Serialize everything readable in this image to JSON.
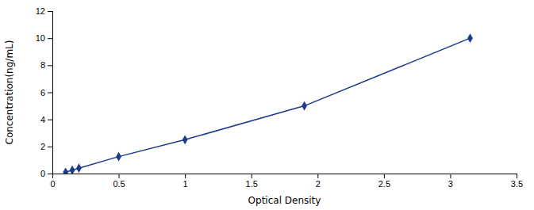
{
  "chart_data": {
    "type": "line",
    "xlabel": "Optical Density",
    "ylabel": "Concentration(ng/mL)",
    "x": [
      0.1,
      0.15,
      0.2,
      0.5,
      1.0,
      1.9,
      3.15
    ],
    "values": [
      0.1,
      0.25,
      0.4,
      1.25,
      2.5,
      5.0,
      10.0
    ],
    "color": "#1a3a8c",
    "marker": "diamond",
    "xlim": [
      0.0,
      3.5
    ],
    "ylim": [
      0,
      12
    ],
    "xticks": [
      0.0,
      0.5,
      1.0,
      1.5,
      2.0,
      2.5,
      3.0,
      3.5
    ],
    "yticks": [
      0,
      2,
      4,
      6,
      8,
      10,
      12
    ]
  }
}
